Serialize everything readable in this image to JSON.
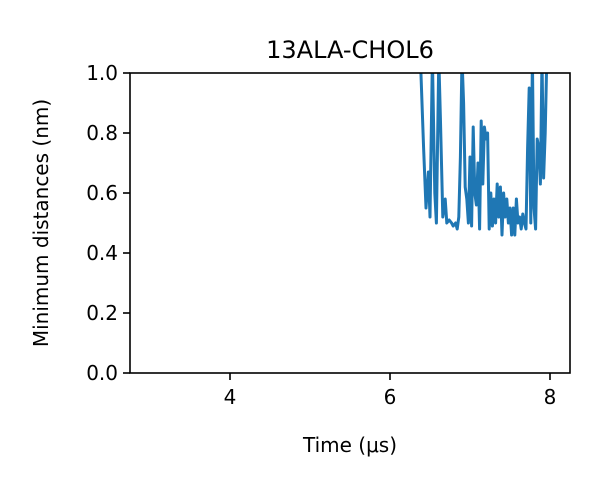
{
  "chart_data": {
    "type": "line",
    "title": "13ALA-CHOL6",
    "xlabel": "Time (μs)",
    "ylabel": "Minimum distances (nm)",
    "xlim": [
      2.75,
      8.25
    ],
    "ylim": [
      0.0,
      1.0
    ],
    "xticks": [
      4,
      6,
      8
    ],
    "xtick_labels": [
      "4",
      "6",
      "8"
    ],
    "yticks": [
      0.0,
      0.2,
      0.4,
      0.6,
      0.8,
      1.0
    ],
    "ytick_labels": [
      "0.0",
      "0.2",
      "0.4",
      "0.6",
      "0.8",
      "1.0"
    ],
    "grid": false,
    "legend": "none",
    "series": [
      {
        "color": "#1f77b4",
        "x": [
          6.38,
          6.42,
          6.45,
          6.48,
          6.5,
          6.53,
          6.56,
          6.58,
          6.61,
          6.63,
          6.66,
          6.69,
          6.71,
          6.74,
          6.77,
          6.79,
          6.82,
          6.84,
          6.86,
          6.88,
          6.9,
          6.92,
          6.94,
          6.96,
          6.98,
          7.0,
          7.02,
          7.04,
          7.06,
          7.08,
          7.1,
          7.12,
          7.14,
          7.16,
          7.18,
          7.2,
          7.22,
          7.24,
          7.26,
          7.28,
          7.3,
          7.32,
          7.34,
          7.36,
          7.38,
          7.4,
          7.42,
          7.44,
          7.46,
          7.48,
          7.5,
          7.52,
          7.54,
          7.56,
          7.58,
          7.6,
          7.62,
          7.64,
          7.66,
          7.68,
          7.7,
          7.72,
          7.74,
          7.76,
          7.78,
          7.8,
          7.82,
          7.84,
          7.86,
          7.88,
          7.9,
          7.92,
          7.94,
          7.96
        ],
        "y": [
          1.05,
          0.75,
          0.55,
          0.67,
          0.52,
          1.05,
          0.6,
          0.5,
          1.05,
          0.85,
          0.52,
          0.58,
          0.5,
          0.51,
          0.5,
          0.49,
          0.5,
          0.48,
          0.52,
          0.72,
          1.05,
          0.9,
          0.62,
          0.58,
          0.5,
          0.72,
          0.49,
          0.82,
          0.6,
          0.56,
          0.7,
          0.48,
          0.84,
          0.63,
          0.82,
          0.78,
          0.8,
          0.48,
          0.6,
          0.49,
          0.58,
          0.5,
          0.63,
          0.52,
          0.62,
          0.46,
          0.6,
          0.52,
          0.58,
          0.5,
          0.55,
          0.46,
          0.55,
          0.46,
          0.58,
          0.5,
          0.52,
          0.48,
          0.53,
          0.5,
          0.48,
          0.75,
          0.95,
          0.5,
          1.05,
          0.55,
          0.48,
          0.78,
          0.75,
          0.63,
          1.05,
          0.65,
          0.8,
          1.05
        ]
      }
    ]
  }
}
